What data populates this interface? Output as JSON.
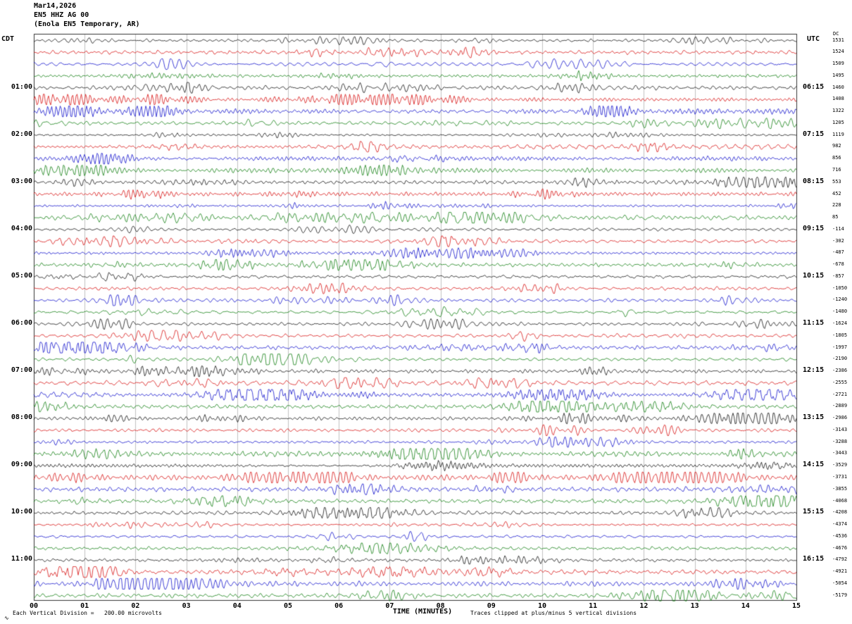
{
  "header": {
    "date": "Mar14,2026",
    "station": "EN5 HHZ AG 00",
    "description": "(Enola EN5 Temporary, AR)"
  },
  "axes": {
    "left_label": "CDT",
    "right_label": "UTC",
    "dc_label": "DC",
    "x_title": "TIME (MINUTES)",
    "x_ticks": [
      "00",
      "01",
      "02",
      "03",
      "04",
      "05",
      "06",
      "07",
      "08",
      "09",
      "10",
      "11",
      "12",
      "13",
      "14",
      "15"
    ]
  },
  "footer": {
    "left": "Each Vertical Division =   200.00 microvolts",
    "center": "TIME (MINUTES)",
    "right": "Traces clipped at plus/minus 5 vertical divisions",
    "marker": "∿"
  },
  "chart_data": {
    "type": "line",
    "title": "EN5 HHZ AG 00 (Enola EN5 Temporary, AR) helicorder, Mar14,2026",
    "x_axis": {
      "label": "TIME (MINUTES)",
      "min": 0,
      "max": 15,
      "tick_interval": 1
    },
    "rows": 48,
    "minutes_per_row": 15,
    "row_start_cdt": "00:00",
    "grid": true,
    "trace_color_cycle": [
      "#000000",
      "#d40000",
      "#0000c8",
      "#007700"
    ],
    "left_hour_labels": [
      "01:00",
      "02:00",
      "03:00",
      "04:00",
      "05:00",
      "06:00",
      "07:00",
      "08:00",
      "09:00",
      "10:00",
      "11:00"
    ],
    "right_hour_labels": [
      "06:15",
      "07:15",
      "08:15",
      "09:15",
      "10:15",
      "11:15",
      "12:15",
      "13:15",
      "14:15",
      "15:15",
      "16:15"
    ],
    "hour_label_row_interval": 4,
    "dc_offsets": [
      1531,
      1524,
      1509,
      1495,
      1460,
      1408,
      1322,
      1205,
      1119,
      982,
      856,
      716,
      553,
      452,
      228,
      85,
      -114,
      -302,
      -487,
      -678,
      -857,
      -1050,
      -1240,
      -1480,
      -1624,
      -1805,
      -1997,
      -2190,
      -2386,
      -2555,
      -2721,
      -2889,
      -2986,
      -3143,
      -3288,
      -3443,
      -3529,
      -3731,
      -3855,
      -4068,
      -4208,
      -4374,
      -4536,
      -4676,
      -4792,
      -4921,
      -5054,
      -5179
    ],
    "scale_note": "Each Vertical Division = 200.00 microvolts",
    "clip_note": "Traces clipped at plus/minus 5 vertical divisions",
    "trace_character": "continuous band-limited microseismic noise with spindle-shaped bursts, clipped at +/-5 divisions"
  }
}
